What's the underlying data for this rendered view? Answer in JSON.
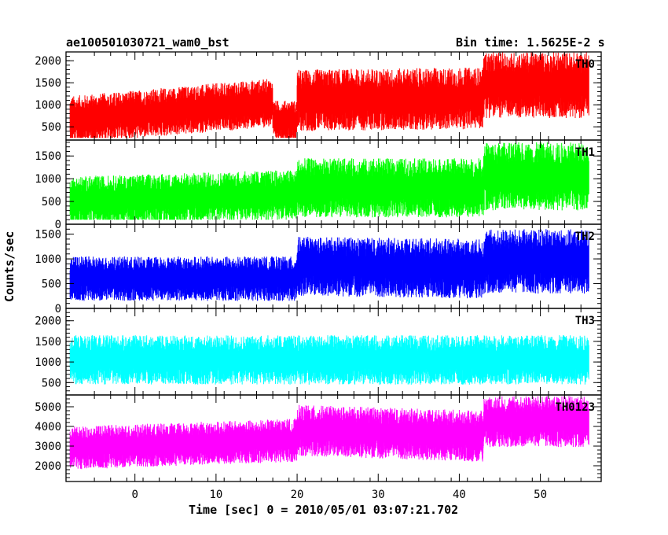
{
  "header": {
    "title_left": "ae100501030721_wam0_bst",
    "title_right": "Bin time: 1.5625E-2 s"
  },
  "chart_data": {
    "type": "line",
    "xlabel": "Time [sec] 0 = 2010/05/01 03:07:21.702",
    "ylabel": "Counts/sec",
    "xlim": [
      -8.5,
      57.5
    ],
    "x_ticks": [
      0,
      10,
      20,
      30,
      40,
      50
    ],
    "x_range_data": [
      -8,
      56
    ],
    "panels": [
      {
        "name": "TH0",
        "color": "#ff0000",
        "ylim": [
          200,
          2200
        ],
        "y_ticks": [
          500,
          1000,
          1500,
          2000
        ],
        "segments": [
          {
            "x": [
              -8,
              17
            ],
            "level": [
              650,
              1050
            ],
            "spread": 550,
            "min": 250
          },
          {
            "x": [
              17,
              20
            ],
            "level": [
              650,
              650
            ],
            "spread": 450,
            "min": 250
          },
          {
            "x": [
              20,
              43
            ],
            "level": [
              1100,
              1150
            ],
            "spread": 700,
            "min": 300
          },
          {
            "x": [
              43,
              56
            ],
            "level": [
              1450,
              1450
            ],
            "spread": 750,
            "min": 350
          }
        ]
      },
      {
        "name": "TH1",
        "color": "#00ff00",
        "ylim": [
          0,
          1850
        ],
        "y_ticks": [
          0,
          500,
          1000,
          1500
        ],
        "segments": [
          {
            "x": [
              -8,
              20
            ],
            "level": [
              500,
              650
            ],
            "spread": 550,
            "min": 100
          },
          {
            "x": [
              20,
              43
            ],
            "level": [
              800,
              800
            ],
            "spread": 650,
            "min": 120
          },
          {
            "x": [
              43,
              56
            ],
            "level": [
              1050,
              1050
            ],
            "spread": 750,
            "min": 150
          }
        ]
      },
      {
        "name": "TH2",
        "color": "#0000ff",
        "ylim": [
          0,
          1700
        ],
        "y_ticks": [
          0,
          500,
          1000,
          1500
        ],
        "segments": [
          {
            "x": [
              -8,
              20
            ],
            "level": [
              600,
              600
            ],
            "spread": 450,
            "min": 50
          },
          {
            "x": [
              20,
              43
            ],
            "level": [
              850,
              800
            ],
            "spread": 600,
            "min": 80
          },
          {
            "x": [
              43,
              56
            ],
            "level": [
              950,
              950
            ],
            "spread": 650,
            "min": 100
          }
        ]
      },
      {
        "name": "TH3",
        "color": "#00ffff",
        "ylim": [
          200,
          2300
        ],
        "y_ticks": [
          500,
          1000,
          1500,
          2000
        ],
        "segments": [
          {
            "x": [
              -8,
              56
            ],
            "level": [
              1050,
              1050
            ],
            "spread": 600,
            "min": 300
          }
        ]
      },
      {
        "name": "TH0123",
        "color": "#ff00ff",
        "ylim": [
          1200,
          5600
        ],
        "y_ticks": [
          2000,
          3000,
          4000,
          5000
        ],
        "segments": [
          {
            "x": [
              -8,
              20
            ],
            "level": [
              2900,
              3300
            ],
            "spread": 1100,
            "min": 1300
          },
          {
            "x": [
              20,
              43
            ],
            "level": [
              3800,
              3500
            ],
            "spread": 1300,
            "min": 1500
          },
          {
            "x": [
              43,
              56
            ],
            "level": [
              4250,
              4250
            ],
            "spread": 1300,
            "min": 2000
          }
        ]
      }
    ]
  }
}
